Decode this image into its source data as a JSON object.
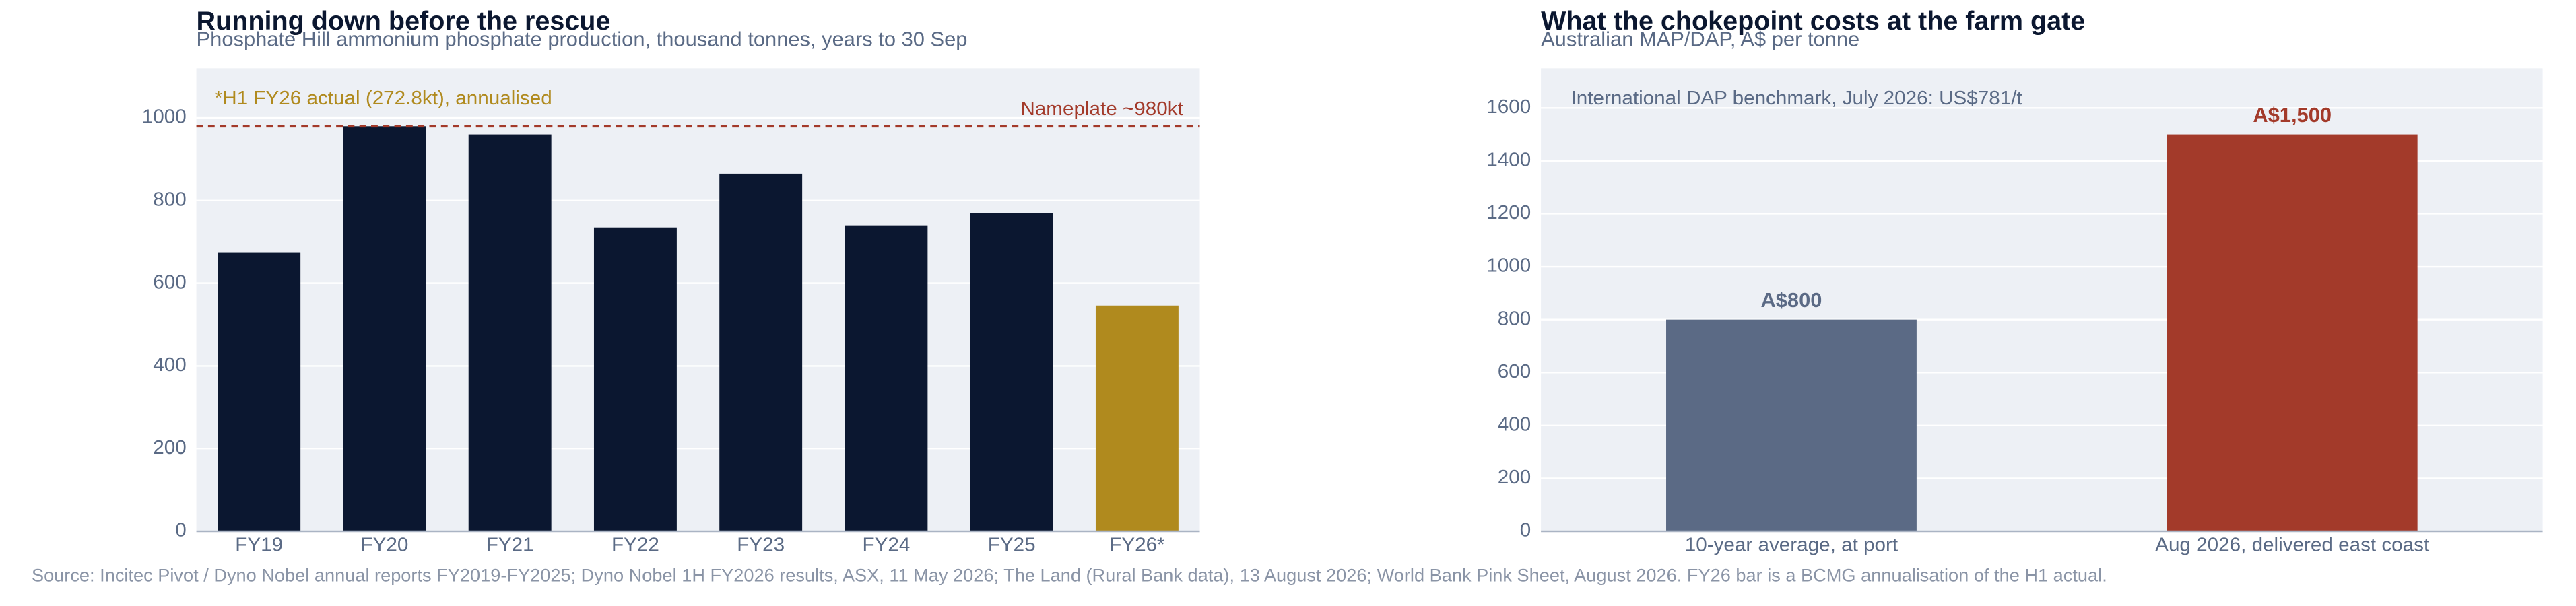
{
  "chart_data": [
    {
      "type": "bar",
      "title": "Running down before the rescue",
      "subtitle": "Phosphate Hill ammonium phosphate production, thousand tonnes, years to 30 Sep",
      "categories": [
        "FY19",
        "FY20",
        "FY21",
        "FY22",
        "FY23",
        "FY24",
        "FY25",
        "FY26*"
      ],
      "values": [
        675,
        980,
        960,
        735,
        865,
        740,
        770,
        546
      ],
      "colors": [
        "#0b1730",
        "#0b1730",
        "#0b1730",
        "#0b1730",
        "#0b1730",
        "#0b1730",
        "#0b1730",
        "#b08a1e"
      ],
      "ylim": [
        0,
        1120
      ],
      "yticks": [
        0,
        200,
        400,
        600,
        800,
        1000
      ],
      "grid": true,
      "annotation": "*H1 FY26 actual (272.8kt), annualised",
      "annotation_color": "#b08a1e",
      "reference_line": {
        "value": 980,
        "label": "Nameplate ~980kt",
        "color": "#a33a2a"
      }
    },
    {
      "type": "bar",
      "title": "What the chokepoint costs at the farm gate",
      "subtitle": "Australian MAP/DAP, A$ per tonne",
      "categories": [
        "10-year average, at port",
        "Aug 2026, delivered east coast"
      ],
      "values": [
        800,
        1500
      ],
      "value_labels": [
        "A$800",
        "A$1,500"
      ],
      "colors": [
        "#5b6a85",
        "#a33a2a"
      ],
      "ylim": [
        0,
        1750
      ],
      "yticks": [
        0,
        200,
        400,
        600,
        800,
        1000,
        1200,
        1400,
        1600
      ],
      "grid": true,
      "annotation": "International DAP benchmark, July 2026: US$781/t",
      "annotation_color": "#5a6a85"
    }
  ],
  "source": "Source: Incitec Pivot / Dyno Nobel annual reports FY2019-FY2025; Dyno Nobel 1H FY2026 results, ASX, 11 May 2026; The Land (Rural Bank data), 13 August 2026; World Bank Pink Sheet, August 2026. FY26 bar is a BCMG annualisation of the H1 actual."
}
